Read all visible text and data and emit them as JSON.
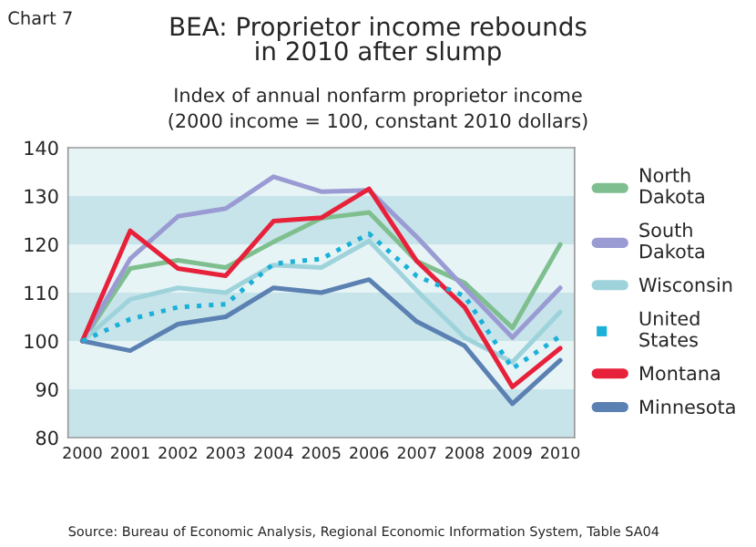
{
  "chart_data": {
    "type": "line",
    "title": "BEA: Proprietor income rebounds\nin 2010 after slump",
    "subtitle": "Index of annual nonfarm proprietor income\n(2000 income = 100, constant 2010 dollars)",
    "categories": [
      "2000",
      "2001",
      "2002",
      "2003",
      "2004",
      "2005",
      "2006",
      "2007",
      "2008",
      "2009",
      "2010"
    ],
    "series": [
      {
        "name": "North\nDakota",
        "color": "#7fbf8f",
        "line_style": "solid",
        "values": [
          100,
          115,
          116.7,
          115.2,
          120.5,
          125.4,
          126.6,
          116.5,
          112,
          102.7,
          120
        ]
      },
      {
        "name": "South\nDakota",
        "color": "#9b9bd3",
        "line_style": "solid",
        "values": [
          100,
          117,
          125.8,
          127.4,
          134,
          130.9,
          131.2,
          121.5,
          111,
          100.7,
          111
        ]
      },
      {
        "name": "Wisconsin",
        "color": "#9fd3db",
        "line_style": "solid",
        "values": [
          100,
          108.6,
          111,
          110,
          115.7,
          115.2,
          120.7,
          110.4,
          100.7,
          95.6,
          106
        ]
      },
      {
        "name": "United\nStates",
        "color": "#1ab0d8",
        "line_style": "dotted",
        "values": [
          100,
          104.5,
          107,
          107.6,
          116,
          117,
          122.2,
          113.4,
          109.3,
          94.3,
          101
        ]
      },
      {
        "name": "Montana",
        "color": "#e8213b",
        "line_style": "solid",
        "values": [
          100,
          122.8,
          115,
          113.5,
          124.8,
          125.5,
          131.5,
          116.5,
          107,
          90.5,
          98.5
        ]
      },
      {
        "name": "Minnesota",
        "color": "#5b80b2",
        "line_style": "solid",
        "values": [
          100,
          98,
          103.5,
          105,
          111,
          110,
          112.7,
          104,
          99,
          87,
          96
        ]
      }
    ],
    "ylim": [
      80,
      140
    ],
    "yticks": [
      80,
      90,
      100,
      110,
      120,
      130,
      140
    ],
    "grid": false,
    "legend": "right",
    "marker": "none",
    "bands": [
      {
        "axis": "y",
        "from": 80,
        "to": 90,
        "color": "#c6e4e9"
      },
      {
        "axis": "y",
        "from": 90,
        "to": 100,
        "color": "#e6f4f6"
      },
      {
        "axis": "y",
        "from": 100,
        "to": 110,
        "color": "#c6e4e9"
      },
      {
        "axis": "y",
        "from": 110,
        "to": 120,
        "color": "#e6f4f6"
      },
      {
        "axis": "y",
        "from": 120,
        "to": 130,
        "color": "#c6e4e9"
      },
      {
        "axis": "y",
        "from": 130,
        "to": 140,
        "color": "#e6f4f6"
      }
    ],
    "annotations": [
      "Chart 7",
      "Source: Bureau of Economic Analysis, Regional Economic Information System, Table SA04"
    ]
  }
}
